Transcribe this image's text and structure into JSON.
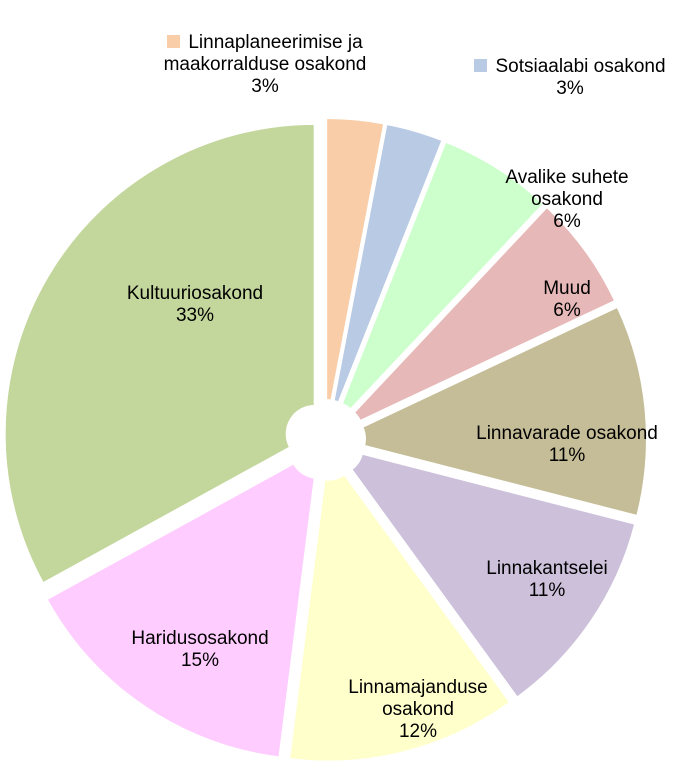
{
  "chart_data": {
    "type": "pie",
    "categories": [
      "Linnaplaneerimise ja maakorralduse osakond",
      "Sotsiaalabi osakond",
      "Avalike suhete osakond",
      "Muud",
      "Linnavarade osakond",
      "Linnakantselei",
      "Linnamajanduse osakond",
      "Haridusosakond",
      "Kultuuriosakond"
    ],
    "values": [
      3,
      3,
      6,
      6,
      11,
      11,
      12,
      15,
      33
    ],
    "value_labels": [
      "3%",
      "3%",
      "6%",
      "6%",
      "11%",
      "11%",
      "12%",
      "15%",
      "33%"
    ],
    "colors": [
      "#f9cda8",
      "#b9cae4",
      "#ccffcc",
      "#e6b8b7",
      "#c4bd97",
      "#ccc0da",
      "#ffffcc",
      "#ffccff",
      "#c3d69b"
    ]
  }
}
